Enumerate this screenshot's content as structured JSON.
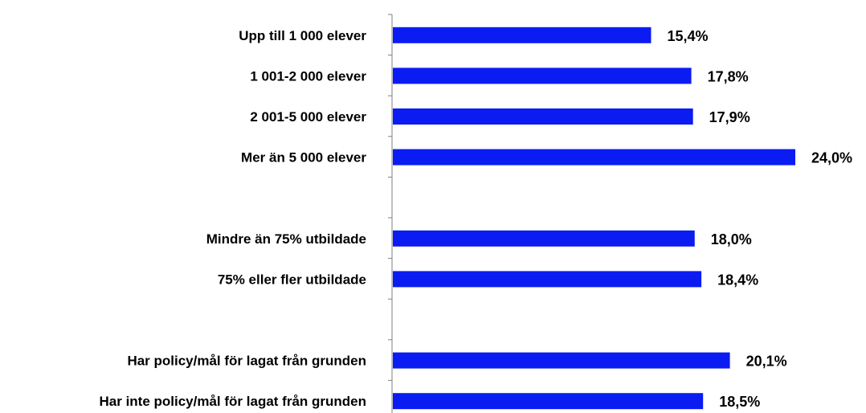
{
  "chart_data": {
    "type": "bar",
    "orientation": "horizontal",
    "rows": [
      {
        "label": "Upp till 1 000 elever",
        "value": 15.4,
        "value_label": "15,4%"
      },
      {
        "label": "1 001-2 000 elever",
        "value": 17.8,
        "value_label": "17,8%"
      },
      {
        "label": "2 001-5 000 elever",
        "value": 17.9,
        "value_label": "17,9%"
      },
      {
        "label": "Mer än 5 000 elever",
        "value": 24.0,
        "value_label": "24,0%"
      },
      {
        "label": "",
        "value": null,
        "value_label": ""
      },
      {
        "label": "Mindre än 75% utbildade",
        "value": 18.0,
        "value_label": "18,0%"
      },
      {
        "label": "75% eller fler utbildade",
        "value": 18.4,
        "value_label": "18,4%"
      },
      {
        "label": "",
        "value": null,
        "value_label": ""
      },
      {
        "label": "Har policy/mål för lagat från grunden",
        "value": 20.1,
        "value_label": "20,1%"
      },
      {
        "label": "Har inte policy/mål för lagat från grunden",
        "value": 18.5,
        "value_label": "18,5%"
      }
    ],
    "xlim": [
      0,
      24.0
    ],
    "grid": false,
    "legend": "none",
    "bar_color": "#0a1cf2",
    "title": "",
    "xlabel": "",
    "ylabel": ""
  }
}
